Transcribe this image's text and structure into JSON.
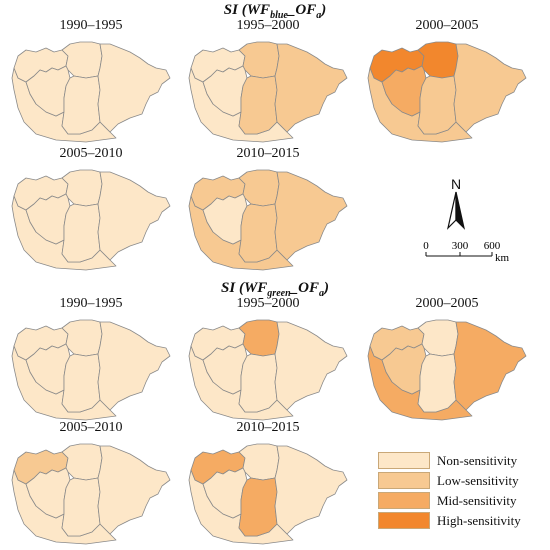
{
  "colors": {
    "Non-sensitivity": "#fde7c8",
    "Low-sensitivity": "#f7c992",
    "Mid-sensitivity": "#f5ab63",
    "High-sensitivity": "#f2872d"
  },
  "sections": [
    {
      "title_main": "SI (WF",
      "title_sub": "blue",
      "title_mid": "_OF",
      "title_sub2": "a",
      "title_end": ")",
      "panels": [
        {
          "period": "1990–1995",
          "regions": {
            "A": "Non-sensitivity",
            "B": "Non-sensitivity",
            "C": "Non-sensitivity",
            "D": "Non-sensitivity",
            "E": "Non-sensitivity",
            "F": "Non-sensitivity"
          }
        },
        {
          "period": "1995–2000",
          "regions": {
            "A": "Non-sensitivity",
            "B": "Low-sensitivity",
            "C": "Non-sensitivity",
            "D": "Low-sensitivity",
            "E": "Low-sensitivity",
            "F": "Non-sensitivity"
          }
        },
        {
          "period": "2000–2005",
          "regions": {
            "A": "High-sensitivity",
            "B": "High-sensitivity",
            "C": "Mid-sensitivity",
            "D": "Low-sensitivity",
            "E": "Low-sensitivity",
            "F": "Low-sensitivity"
          }
        },
        {
          "period": "2005–2010",
          "regions": {
            "A": "Non-sensitivity",
            "B": "Non-sensitivity",
            "C": "Non-sensitivity",
            "D": "Non-sensitivity",
            "E": "Non-sensitivity",
            "F": "Non-sensitivity"
          }
        },
        {
          "period": "2010–2015",
          "regions": {
            "A": "Low-sensitivity",
            "B": "Low-sensitivity",
            "C": "Non-sensitivity",
            "D": "Low-sensitivity",
            "E": "Low-sensitivity",
            "F": "Low-sensitivity"
          }
        }
      ]
    },
    {
      "title_main": "SI (WF",
      "title_sub": "green",
      "title_mid": "_OF",
      "title_sub2": "a",
      "title_end": ")",
      "panels": [
        {
          "period": "1990–1995",
          "regions": {
            "A": "Non-sensitivity",
            "B": "Non-sensitivity",
            "C": "Non-sensitivity",
            "D": "Non-sensitivity",
            "E": "Non-sensitivity",
            "F": "Non-sensitivity"
          }
        },
        {
          "period": "1995–2000",
          "regions": {
            "A": "Non-sensitivity",
            "B": "Mid-sensitivity",
            "C": "Non-sensitivity",
            "D": "Non-sensitivity",
            "E": "Non-sensitivity",
            "F": "Non-sensitivity"
          }
        },
        {
          "period": "2000–2005",
          "regions": {
            "A": "Low-sensitivity",
            "B": "Non-sensitivity",
            "C": "Low-sensitivity",
            "D": "Non-sensitivity",
            "E": "Mid-sensitivity",
            "F": "Mid-sensitivity"
          }
        },
        {
          "period": "2005–2010",
          "regions": {
            "A": "Low-sensitivity",
            "B": "Non-sensitivity",
            "C": "Non-sensitivity",
            "D": "Non-sensitivity",
            "E": "Non-sensitivity",
            "F": "Non-sensitivity"
          }
        },
        {
          "period": "2010–2015",
          "regions": {
            "A": "Mid-sensitivity",
            "B": "Non-sensitivity",
            "C": "Non-sensitivity",
            "D": "Mid-sensitivity",
            "E": "Non-sensitivity",
            "F": "Non-sensitivity"
          }
        }
      ]
    }
  ],
  "legend": [
    {
      "label": "Non-sensitivity"
    },
    {
      "label": "Low-sensitivity"
    },
    {
      "label": "Mid-sensitivity"
    },
    {
      "label": "High-sensitivity"
    }
  ],
  "north_label": "N",
  "scale": {
    "ticks": [
      "0",
      "300",
      "600"
    ],
    "unit": "km"
  }
}
